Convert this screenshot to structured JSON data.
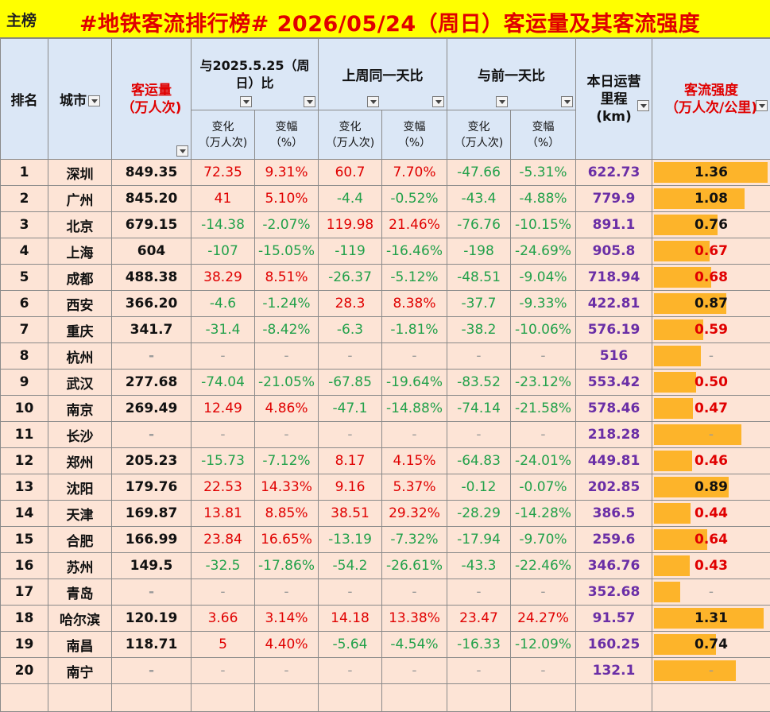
{
  "header": {
    "tab_label": "主榜",
    "title": "#地铁客流排行榜# 2026/05/24（周日）客运量及其客流强度"
  },
  "columns": {
    "rank": "排名",
    "city": "城市",
    "volume_line1": "客运量",
    "volume_line2": "（万人次)",
    "yoy_line1": "与2025.5.25（周",
    "yoy_line2": "日）比",
    "wow": "上周同一天比",
    "dod": "与前一天比",
    "mileage_line1": "本日运营",
    "mileage_line2": "里程",
    "mileage_line3": "(km)",
    "intensity_line1": "客流强度",
    "intensity_line2": "（万人次/公里)",
    "change_line1": "变化",
    "change_line2": "（万人次)",
    "pct_line1": "变幅",
    "pct_line2": "（%）"
  },
  "rows": [
    {
      "rank": "1",
      "city": "深圳",
      "volume": "849.35",
      "yoy_chg": "72.35",
      "yoy_pct": "9.31%",
      "wow_chg": "60.7",
      "wow_pct": "7.70%",
      "dod_chg": "-47.66",
      "dod_pct": "-5.31%",
      "km": "622.73",
      "intensity": "1.36",
      "intensity_value": 1.36
    },
    {
      "rank": "2",
      "city": "广州",
      "volume": "845.20",
      "yoy_chg": "41",
      "yoy_pct": "5.10%",
      "wow_chg": "-4.4",
      "wow_pct": "-0.52%",
      "dod_chg": "-43.4",
      "dod_pct": "-4.88%",
      "km": "779.9",
      "intensity": "1.08",
      "intensity_value": 1.08
    },
    {
      "rank": "3",
      "city": "北京",
      "volume": "679.15",
      "yoy_chg": "-14.38",
      "yoy_pct": "-2.07%",
      "wow_chg": "119.98",
      "wow_pct": "21.46%",
      "dod_chg": "-76.76",
      "dod_pct": "-10.15%",
      "km": "891.1",
      "intensity": "0.76",
      "intensity_value": 0.76
    },
    {
      "rank": "4",
      "city": "上海",
      "volume": "604",
      "yoy_chg": "-107",
      "yoy_pct": "-15.05%",
      "wow_chg": "-119",
      "wow_pct": "-16.46%",
      "dod_chg": "-198",
      "dod_pct": "-24.69%",
      "km": "905.8",
      "intensity": "0.67",
      "intensity_value": 0.67
    },
    {
      "rank": "5",
      "city": "成都",
      "volume": "488.38",
      "yoy_chg": "38.29",
      "yoy_pct": "8.51%",
      "wow_chg": "-26.37",
      "wow_pct": "-5.12%",
      "dod_chg": "-48.51",
      "dod_pct": "-9.04%",
      "km": "718.94",
      "intensity": "0.68",
      "intensity_value": 0.68
    },
    {
      "rank": "6",
      "city": "西安",
      "volume": "366.20",
      "yoy_chg": "-4.6",
      "yoy_pct": "-1.24%",
      "wow_chg": "28.3",
      "wow_pct": "8.38%",
      "dod_chg": "-37.7",
      "dod_pct": "-9.33%",
      "km": "422.81",
      "intensity": "0.87",
      "intensity_value": 0.87
    },
    {
      "rank": "7",
      "city": "重庆",
      "volume": "341.7",
      "yoy_chg": "-31.4",
      "yoy_pct": "-8.42%",
      "wow_chg": "-6.3",
      "wow_pct": "-1.81%",
      "dod_chg": "-38.2",
      "dod_pct": "-10.06%",
      "km": "576.19",
      "intensity": "0.59",
      "intensity_value": 0.59
    },
    {
      "rank": "8",
      "city": "杭州",
      "volume": "-",
      "yoy_chg": "-",
      "yoy_pct": "-",
      "wow_chg": "-",
      "wow_pct": "-",
      "dod_chg": "-",
      "dod_pct": "-",
      "km": "516",
      "intensity": "-",
      "intensity_value": 0.56
    },
    {
      "rank": "9",
      "city": "武汉",
      "volume": "277.68",
      "yoy_chg": "-74.04",
      "yoy_pct": "-21.05%",
      "wow_chg": "-67.85",
      "wow_pct": "-19.64%",
      "dod_chg": "-83.52",
      "dod_pct": "-23.12%",
      "km": "553.42",
      "intensity": "0.50",
      "intensity_value": 0.5
    },
    {
      "rank": "10",
      "city": "南京",
      "volume": "269.49",
      "yoy_chg": "12.49",
      "yoy_pct": "4.86%",
      "wow_chg": "-47.1",
      "wow_pct": "-14.88%",
      "dod_chg": "-74.14",
      "dod_pct": "-21.58%",
      "km": "578.46",
      "intensity": "0.47",
      "intensity_value": 0.47
    },
    {
      "rank": "11",
      "city": "长沙",
      "volume": "-",
      "yoy_chg": "-",
      "yoy_pct": "-",
      "wow_chg": "-",
      "wow_pct": "-",
      "dod_chg": "-",
      "dod_pct": "-",
      "km": "218.28",
      "intensity": "-",
      "intensity_value": 1.05
    },
    {
      "rank": "12",
      "city": "郑州",
      "volume": "205.23",
      "yoy_chg": "-15.73",
      "yoy_pct": "-7.12%",
      "wow_chg": "8.17",
      "wow_pct": "4.15%",
      "dod_chg": "-64.83",
      "dod_pct": "-24.01%",
      "km": "449.81",
      "intensity": "0.46",
      "intensity_value": 0.46
    },
    {
      "rank": "13",
      "city": "沈阳",
      "volume": "179.76",
      "yoy_chg": "22.53",
      "yoy_pct": "14.33%",
      "wow_chg": "9.16",
      "wow_pct": "5.37%",
      "dod_chg": "-0.12",
      "dod_pct": "-0.07%",
      "km": "202.85",
      "intensity": "0.89",
      "intensity_value": 0.89
    },
    {
      "rank": "14",
      "city": "天津",
      "volume": "169.87",
      "yoy_chg": "13.81",
      "yoy_pct": "8.85%",
      "wow_chg": "38.51",
      "wow_pct": "29.32%",
      "dod_chg": "-28.29",
      "dod_pct": "-14.28%",
      "km": "386.5",
      "intensity": "0.44",
      "intensity_value": 0.44
    },
    {
      "rank": "15",
      "city": "合肥",
      "volume": "166.99",
      "yoy_chg": "23.84",
      "yoy_pct": "16.65%",
      "wow_chg": "-13.19",
      "wow_pct": "-7.32%",
      "dod_chg": "-17.94",
      "dod_pct": "-9.70%",
      "km": "259.6",
      "intensity": "0.64",
      "intensity_value": 0.64
    },
    {
      "rank": "16",
      "city": "苏州",
      "volume": "149.5",
      "yoy_chg": "-32.5",
      "yoy_pct": "-17.86%",
      "wow_chg": "-54.2",
      "wow_pct": "-26.61%",
      "dod_chg": "-43.3",
      "dod_pct": "-22.46%",
      "km": "346.76",
      "intensity": "0.43",
      "intensity_value": 0.43
    },
    {
      "rank": "17",
      "city": "青岛",
      "volume": "-",
      "yoy_chg": "-",
      "yoy_pct": "-",
      "wow_chg": "-",
      "wow_pct": "-",
      "dod_chg": "-",
      "dod_pct": "-",
      "km": "352.68",
      "intensity": "-",
      "intensity_value": 0.31
    },
    {
      "rank": "18",
      "city": "哈尔滨",
      "volume": "120.19",
      "yoy_chg": "3.66",
      "yoy_pct": "3.14%",
      "wow_chg": "14.18",
      "wow_pct": "13.38%",
      "dod_chg": "23.47",
      "dod_pct": "24.27%",
      "km": "91.57",
      "intensity": "1.31",
      "intensity_value": 1.31
    },
    {
      "rank": "19",
      "city": "南昌",
      "volume": "118.71",
      "yoy_chg": "5",
      "yoy_pct": "4.40%",
      "wow_chg": "-5.64",
      "wow_pct": "-4.54%",
      "dod_chg": "-16.33",
      "dod_pct": "-12.09%",
      "km": "160.25",
      "intensity": "0.74",
      "intensity_value": 0.74
    },
    {
      "rank": "20",
      "city": "南宁",
      "volume": "-",
      "yoy_chg": "-",
      "yoy_pct": "-",
      "wow_chg": "-",
      "wow_pct": "-",
      "dod_chg": "-",
      "dod_pct": "-",
      "km": "132.1",
      "intensity": "-",
      "intensity_value": 0.98
    }
  ],
  "intensity_max": 1.36,
  "colors": {
    "title_bg": "#ffff00",
    "title_text": "#e00000",
    "header_bg": "#dbe7f6",
    "row_bg": "#fde4d6",
    "positive": "#e00000",
    "negative": "#22a14a",
    "mileage": "#6a2ea6",
    "bar": "#fdb42a"
  },
  "icons": {
    "filter": "filter-dropdown-icon"
  }
}
